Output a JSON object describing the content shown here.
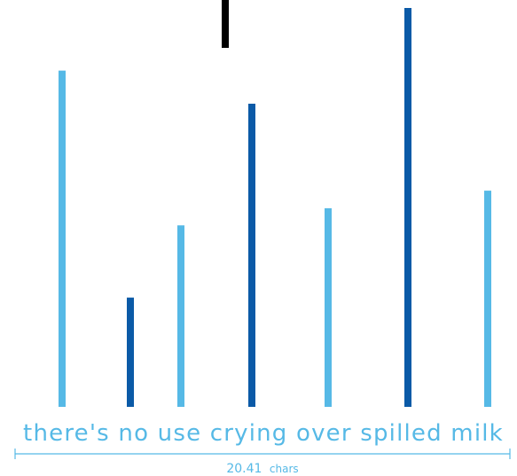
{
  "chart_data": {
    "type": "bar",
    "phrase": "there's no use crying over spilled milk",
    "measure": {
      "value": "20.41",
      "unit": "chars"
    },
    "series": [
      {
        "color": "#56b9e6",
        "values": [
          0.843,
          0.455,
          0.498,
          0.542
        ]
      },
      {
        "color": "#0b5aa7",
        "values": [
          0.274,
          0.76,
          1.0
        ]
      },
      {
        "color": "#000000",
        "values": [
          0.12
        ]
      }
    ],
    "bars": [
      {
        "series": 0,
        "value": 0.843,
        "direction": "up"
      },
      {
        "series": 1,
        "value": 0.274,
        "direction": "up"
      },
      {
        "series": 0,
        "value": 0.455,
        "direction": "up"
      },
      {
        "series": 2,
        "value": 0.12,
        "direction": "down"
      },
      {
        "series": 1,
        "value": 0.76,
        "direction": "up"
      },
      {
        "series": 0,
        "value": 0.498,
        "direction": "up"
      },
      {
        "series": 1,
        "value": 1.0,
        "direction": "up"
      },
      {
        "series": 0,
        "value": 0.542,
        "direction": "up"
      }
    ],
    "colors": {
      "light": "#56b9e6",
      "dark": "#0b5aa7",
      "black": "#000000",
      "text": "#56b9e6"
    }
  }
}
